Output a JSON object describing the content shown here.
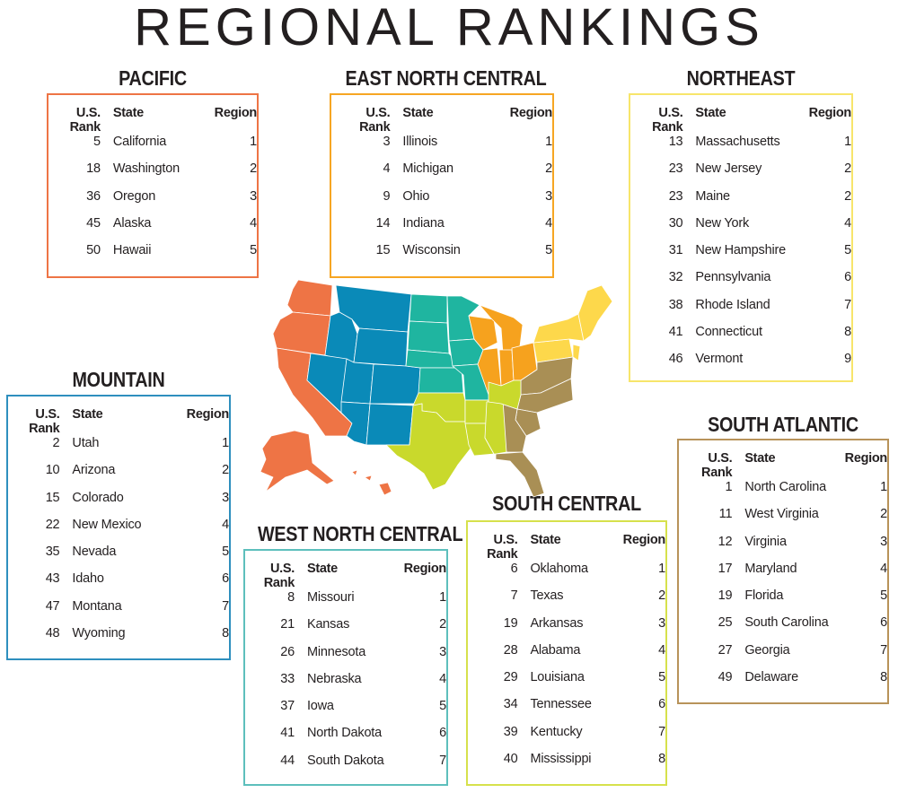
{
  "title": "REGIONAL RANKINGS",
  "columns": {
    "rank": "U.S. Rank",
    "state": "State",
    "region": "Region"
  },
  "regions": [
    {
      "key": "pacific",
      "name": "PACIFIC",
      "color": "#EE7445",
      "rows": [
        {
          "rank": "5",
          "state": "California",
          "region": "1"
        },
        {
          "rank": "18",
          "state": "Washington",
          "region": "2"
        },
        {
          "rank": "36",
          "state": "Oregon",
          "region": "3"
        },
        {
          "rank": "45",
          "state": "Alaska",
          "region": "4"
        },
        {
          "rank": "50",
          "state": "Hawaii",
          "region": "5"
        }
      ]
    },
    {
      "key": "east-north-central",
      "name": "EAST NORTH CENTRAL",
      "color": "#F6A623",
      "rows": [
        {
          "rank": "3",
          "state": "Illinois",
          "region": "1"
        },
        {
          "rank": "4",
          "state": "Michigan",
          "region": "2"
        },
        {
          "rank": "9",
          "state": "Ohio",
          "region": "3"
        },
        {
          "rank": "14",
          "state": "Indiana",
          "region": "4"
        },
        {
          "rank": "15",
          "state": "Wisconsin",
          "region": "5"
        }
      ]
    },
    {
      "key": "northeast",
      "name": "NORTHEAST",
      "color": "#F7E56B",
      "rows": [
        {
          "rank": "13",
          "state": "Massachusetts",
          "region": "1"
        },
        {
          "rank": "23",
          "state": "New Jersey",
          "region": "2"
        },
        {
          "rank": "23",
          "state": "Maine",
          "region": "2"
        },
        {
          "rank": "30",
          "state": "New York",
          "region": "4"
        },
        {
          "rank": "31",
          "state": "New Hampshire",
          "region": "5"
        },
        {
          "rank": "32",
          "state": "Pennsylvania",
          "region": "6"
        },
        {
          "rank": "38",
          "state": "Rhode Island",
          "region": "7"
        },
        {
          "rank": "41",
          "state": "Connecticut",
          "region": "8"
        },
        {
          "rank": "46",
          "state": "Vermont",
          "region": "9"
        }
      ]
    },
    {
      "key": "mountain",
      "name": "MOUNTAIN",
      "color": "#2E8FBE",
      "rows": [
        {
          "rank": "2",
          "state": "Utah",
          "region": "1"
        },
        {
          "rank": "10",
          "state": "Arizona",
          "region": "2"
        },
        {
          "rank": "15",
          "state": "Colorado",
          "region": "3"
        },
        {
          "rank": "22",
          "state": "New Mexico",
          "region": "4"
        },
        {
          "rank": "35",
          "state": "Nevada",
          "region": "5"
        },
        {
          "rank": "43",
          "state": "Idaho",
          "region": "6"
        },
        {
          "rank": "47",
          "state": "Montana",
          "region": "7"
        },
        {
          "rank": "48",
          "state": "Wyoming",
          "region": "8"
        }
      ]
    },
    {
      "key": "south-atlantic",
      "name": "SOUTH ATLANTIC",
      "color": "#B8935A",
      "rows": [
        {
          "rank": "1",
          "state": "North Carolina",
          "region": "1"
        },
        {
          "rank": "11",
          "state": "West Virginia",
          "region": "2"
        },
        {
          "rank": "12",
          "state": "Virginia",
          "region": "3"
        },
        {
          "rank": "17",
          "state": "Maryland",
          "region": "4"
        },
        {
          "rank": "19",
          "state": "Florida",
          "region": "5"
        },
        {
          "rank": "25",
          "state": "South Carolina",
          "region": "6"
        },
        {
          "rank": "27",
          "state": "Georgia",
          "region": "7"
        },
        {
          "rank": "49",
          "state": "Delaware",
          "region": "8"
        }
      ]
    },
    {
      "key": "south-central",
      "name": "SOUTH CENTRAL",
      "color": "#D6E14C",
      "rows": [
        {
          "rank": "6",
          "state": "Oklahoma",
          "region": "1"
        },
        {
          "rank": "7",
          "state": "Texas",
          "region": "2"
        },
        {
          "rank": "19",
          "state": "Arkansas",
          "region": "3"
        },
        {
          "rank": "28",
          "state": "Alabama",
          "region": "4"
        },
        {
          "rank": "29",
          "state": "Louisiana",
          "region": "5"
        },
        {
          "rank": "34",
          "state": "Tennessee",
          "region": "6"
        },
        {
          "rank": "39",
          "state": "Kentucky",
          "region": "7"
        },
        {
          "rank": "40",
          "state": "Mississippi",
          "region": "8"
        }
      ]
    },
    {
      "key": "west-north-central",
      "name": "WEST NORTH CENTRAL",
      "color": "#5DBFBC",
      "rows": [
        {
          "rank": "8",
          "state": "Missouri",
          "region": "1"
        },
        {
          "rank": "21",
          "state": "Kansas",
          "region": "2"
        },
        {
          "rank": "26",
          "state": "Minnesota",
          "region": "3"
        },
        {
          "rank": "33",
          "state": "Nebraska",
          "region": "4"
        },
        {
          "rank": "37",
          "state": "Iowa",
          "region": "5"
        },
        {
          "rank": "41",
          "state": "North Dakota",
          "region": "6"
        },
        {
          "rank": "44",
          "state": "South Dakota",
          "region": "7"
        }
      ]
    }
  ],
  "map_colors": {
    "pacific": "#EE7445",
    "mountain": "#0A8AB8",
    "west_north_central": "#1FB5A0",
    "east_north_central": "#F6A21E",
    "northeast": "#FDD84B",
    "south_central": "#C9D92C",
    "south_atlantic": "#A98F55"
  }
}
